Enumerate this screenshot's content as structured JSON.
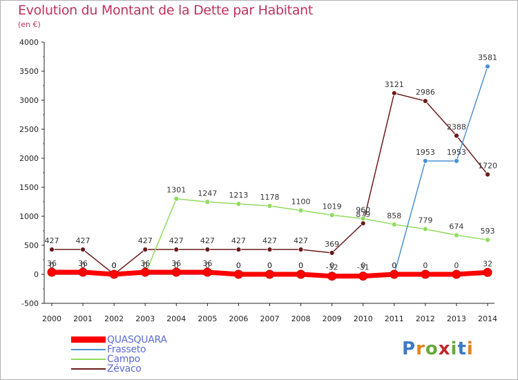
{
  "title": "Evolution du Montant de la Dette par Habitant",
  "subtitle": "(en €)",
  "logo_text": "Proxiti",
  "chart_data": {
    "type": "line",
    "x": [
      2000,
      2001,
      2002,
      2003,
      2004,
      2005,
      2006,
      2007,
      2008,
      2009,
      2010,
      2011,
      2012,
      2013,
      2014
    ],
    "ylim": [
      -500,
      4000
    ],
    "yticks": [
      -500,
      0,
      500,
      1000,
      1500,
      2000,
      2500,
      3000,
      3500,
      4000
    ],
    "grid": false,
    "legend_position": "bottom-left",
    "series": [
      {
        "name": "Zévaco",
        "color": "#6b1a1a",
        "values": [
          427,
          427,
          0,
          427,
          427,
          427,
          427,
          427,
          427,
          369,
          879,
          3121,
          2986,
          2388,
          1720
        ],
        "labels": [
          "427",
          "427",
          "0",
          "427",
          "427",
          "427",
          "427",
          "427",
          "427",
          "369",
          "879",
          "3121",
          "2986",
          "2388",
          "1720"
        ]
      },
      {
        "name": "Campo",
        "color": "#8fdc5c",
        "values": [
          0,
          0,
          0,
          0,
          1301,
          1247,
          1213,
          1178,
          1100,
          1019,
          960,
          858,
          779,
          674,
          593
        ],
        "labels": [
          "0",
          "0",
          "0",
          "0",
          "1301",
          "1247",
          "1213",
          "1178",
          "1100",
          "1019",
          "960",
          "858",
          "779",
          "674",
          "593"
        ]
      },
      {
        "name": "Frasseto",
        "color": "#4a92d0",
        "values": [
          0,
          0,
          0,
          0,
          0,
          0,
          0,
          0,
          0,
          0,
          0,
          0,
          1953,
          1953,
          3581
        ],
        "labels": [
          "0",
          "0",
          "0",
          "0",
          "0",
          "0",
          "0",
          "0",
          "0",
          "0",
          "0",
          "0",
          "1953",
          "1953",
          "3581"
        ]
      },
      {
        "name": "QUASQUARA",
        "color": "#ff0000",
        "values": [
          36,
          36,
          0,
          36,
          36,
          36,
          0,
          0,
          0,
          -32,
          -31,
          0,
          0,
          0,
          32
        ],
        "labels": [
          "36",
          "36",
          "0",
          "36",
          "36",
          "36",
          "0",
          "0",
          "0",
          "-32",
          "-31",
          "0",
          "0",
          "0",
          "32"
        ]
      }
    ]
  },
  "legend": [
    "QUASQUARA",
    "Frasseto",
    "Campo",
    "Zévaco"
  ]
}
